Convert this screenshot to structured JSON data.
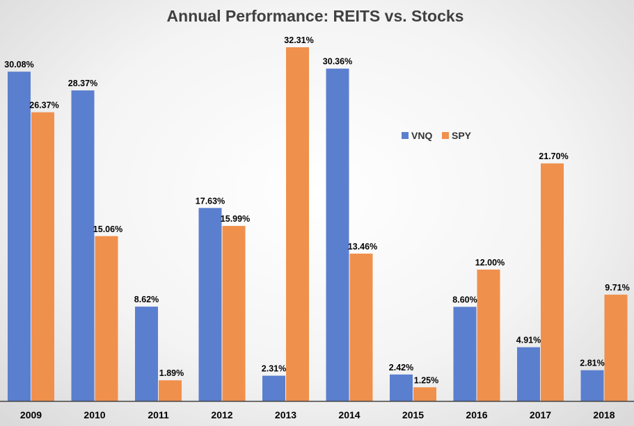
{
  "chart_data": {
    "type": "bar",
    "title": "Annual Performance: REITS vs. Stocks",
    "categories": [
      "2009",
      "2010",
      "2011",
      "2012",
      "2013",
      "2014",
      "2015",
      "2016",
      "2017",
      "2018"
    ],
    "series": [
      {
        "name": "VNQ",
        "color": "#5b7fcf",
        "values": [
          30.08,
          28.37,
          8.62,
          17.63,
          2.31,
          30.36,
          2.42,
          8.6,
          4.91,
          2.81
        ],
        "labels": [
          "30.08%",
          "28.37%",
          "8.62%",
          "17.63%",
          "2.31%",
          "30.36%",
          "2.42%",
          "8.60%",
          "4.91%",
          "2.81%"
        ]
      },
      {
        "name": "SPY",
        "color": "#f0904d",
        "values": [
          26.37,
          15.06,
          1.89,
          15.99,
          32.31,
          13.46,
          1.25,
          12.0,
          21.7,
          9.71
        ],
        "labels": [
          "26.37%",
          "15.06%",
          "1.89%",
          "15.99%",
          "32.31%",
          "13.46%",
          "1.25%",
          "12.00%",
          "21.70%",
          "9.71%"
        ]
      }
    ],
    "ylim": [
      0,
      32.31
    ],
    "grid": false,
    "legend_position": "center-right"
  }
}
